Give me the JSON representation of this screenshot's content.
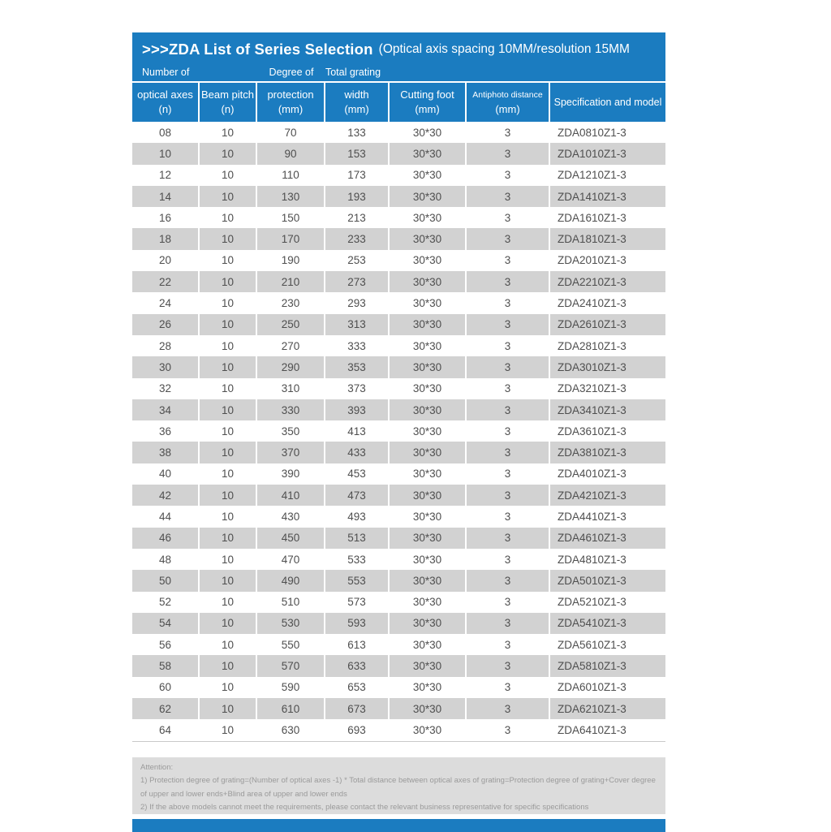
{
  "header": {
    "title": ">>>ZDA List of Series Selection",
    "subtitle": "(Optical axis spacing 10MM/resolution 15MM",
    "super_labels": [
      "Number of",
      "Degree of",
      "Total grating"
    ],
    "columns": [
      {
        "line1": "optical axes",
        "line2": "(n)"
      },
      {
        "line1": "Beam pitch",
        "line2": "(n)"
      },
      {
        "line1": "protection",
        "line2": "(mm)"
      },
      {
        "line1": "width",
        "line2": "(mm)"
      },
      {
        "line1": "Cutting foot",
        "line2": "(mm)"
      },
      {
        "line1": "Antiphoto distance",
        "line2": "(mm)"
      },
      {
        "line1": "Specification and model",
        "line2": ""
      }
    ]
  },
  "table": {
    "rows": [
      [
        "08",
        "10",
        "70",
        "133",
        "30*30",
        "3",
        "ZDA0810Z1-3"
      ],
      [
        "10",
        "10",
        "90",
        "153",
        "30*30",
        "3",
        "ZDA1010Z1-3"
      ],
      [
        "12",
        "10",
        "110",
        "173",
        "30*30",
        "3",
        "ZDA1210Z1-3"
      ],
      [
        "14",
        "10",
        "130",
        "193",
        "30*30",
        "3",
        "ZDA1410Z1-3"
      ],
      [
        "16",
        "10",
        "150",
        "213",
        "30*30",
        "3",
        "ZDA1610Z1-3"
      ],
      [
        "18",
        "10",
        "170",
        "233",
        "30*30",
        "3",
        "ZDA1810Z1-3"
      ],
      [
        "20",
        "10",
        "190",
        "253",
        "30*30",
        "3",
        "ZDA2010Z1-3"
      ],
      [
        "22",
        "10",
        "210",
        "273",
        "30*30",
        "3",
        "ZDA2210Z1-3"
      ],
      [
        "24",
        "10",
        "230",
        "293",
        "30*30",
        "3",
        "ZDA2410Z1-3"
      ],
      [
        "26",
        "10",
        "250",
        "313",
        "30*30",
        "3",
        "ZDA2610Z1-3"
      ],
      [
        "28",
        "10",
        "270",
        "333",
        "30*30",
        "3",
        "ZDA2810Z1-3"
      ],
      [
        "30",
        "10",
        "290",
        "353",
        "30*30",
        "3",
        "ZDA3010Z1-3"
      ],
      [
        "32",
        "10",
        "310",
        "373",
        "30*30",
        "3",
        "ZDA3210Z1-3"
      ],
      [
        "34",
        "10",
        "330",
        "393",
        "30*30",
        "3",
        "ZDA3410Z1-3"
      ],
      [
        "36",
        "10",
        "350",
        "413",
        "30*30",
        "3",
        "ZDA3610Z1-3"
      ],
      [
        "38",
        "10",
        "370",
        "433",
        "30*30",
        "3",
        "ZDA3810Z1-3"
      ],
      [
        "40",
        "10",
        "390",
        "453",
        "30*30",
        "3",
        "ZDA4010Z1-3"
      ],
      [
        "42",
        "10",
        "410",
        "473",
        "30*30",
        "3",
        "ZDA4210Z1-3"
      ],
      [
        "44",
        "10",
        "430",
        "493",
        "30*30",
        "3",
        "ZDA4410Z1-3"
      ],
      [
        "46",
        "10",
        "450",
        "513",
        "30*30",
        "3",
        "ZDA4610Z1-3"
      ],
      [
        "48",
        "10",
        "470",
        "533",
        "30*30",
        "3",
        "ZDA4810Z1-3"
      ],
      [
        "50",
        "10",
        "490",
        "553",
        "30*30",
        "3",
        "ZDA5010Z1-3"
      ],
      [
        "52",
        "10",
        "510",
        "573",
        "30*30",
        "3",
        "ZDA5210Z1-3"
      ],
      [
        "54",
        "10",
        "530",
        "593",
        "30*30",
        "3",
        "ZDA5410Z1-3"
      ],
      [
        "56",
        "10",
        "550",
        "613",
        "30*30",
        "3",
        "ZDA5610Z1-3"
      ],
      [
        "58",
        "10",
        "570",
        "633",
        "30*30",
        "3",
        "ZDA5810Z1-3"
      ],
      [
        "60",
        "10",
        "590",
        "653",
        "30*30",
        "3",
        "ZDA6010Z1-3"
      ],
      [
        "62",
        "10",
        "610",
        "673",
        "30*30",
        "3",
        "ZDA6210Z1-3"
      ],
      [
        "64",
        "10",
        "630",
        "693",
        "30*30",
        "3",
        "ZDA6410Z1-3"
      ]
    ]
  },
  "footer": {
    "attention": "Attention:",
    "note1": "1) Protection degree of grating=(Number of optical axes -1) * Total distance between optical axes of grating=Protection degree of grating+Cover degree of upper and lower ends+Blind area of upper and lower ends",
    "note2": "2) If the above models cannot meet the requirements, please contact the relevant business representative for specific specifications"
  },
  "colors": {
    "accent_blue": "#1b7cc0",
    "row_gray": "#d2d2d2",
    "footer_gray": "#dcdcdc",
    "body_text": "#4f4f4f",
    "footer_text": "#9a9a9a"
  }
}
